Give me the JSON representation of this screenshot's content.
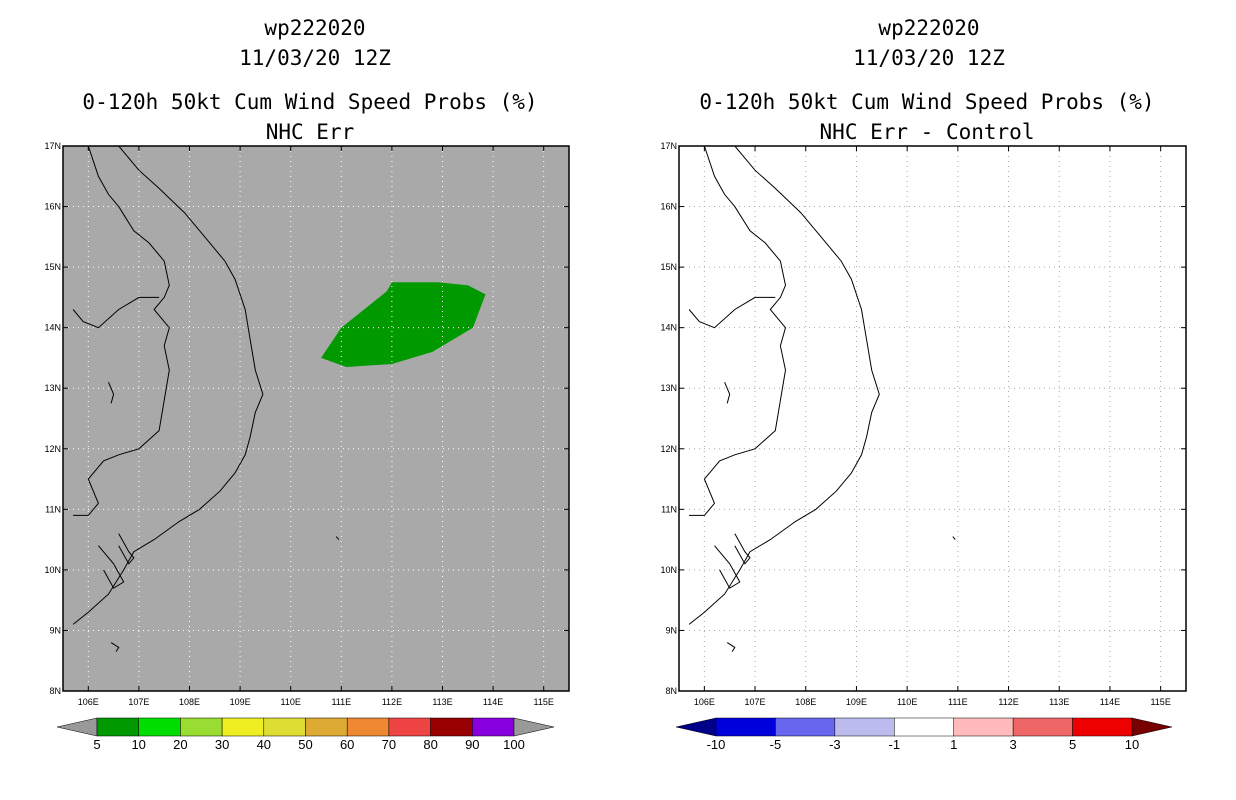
{
  "panels": [
    {
      "title_lines": [
        "wp222020",
        "11/03/20 12Z",
        "0-120h 50kt Cum Wind Speed Probs (%)",
        "NHC Err"
      ],
      "background_color": "#a9a9a9",
      "grid_color": "#ffffff",
      "colorbar": {
        "colors": [
          "#009900",
          "#00dd00",
          "#99dd33",
          "#eeee22",
          "#dddd33",
          "#ddaa33",
          "#ee8833",
          "#ee4444",
          "#990000",
          "#8800dd"
        ],
        "labels": [
          "5",
          "10",
          "20",
          "30",
          "40",
          "50",
          "60",
          "70",
          "80",
          "90",
          "100"
        ],
        "low_color": "#999999",
        "high_color": "#999999"
      },
      "features": [
        {
          "name": "probability-contour-5-10pct",
          "color": "#009900",
          "polygon": [
            [
              110.6,
              13.5
            ],
            [
              111.0,
              14.0
            ],
            [
              111.9,
              14.6
            ],
            [
              112.0,
              14.75
            ],
            [
              112.9,
              14.75
            ],
            [
              113.5,
              14.7
            ],
            [
              113.85,
              14.55
            ],
            [
              113.6,
              14.0
            ],
            [
              112.8,
              13.6
            ],
            [
              112.0,
              13.4
            ],
            [
              111.1,
              13.35
            ]
          ]
        }
      ]
    },
    {
      "title_lines": [
        "wp222020",
        "11/03/20 12Z",
        "0-120h 50kt Cum Wind Speed Probs (%)",
        "NHC Err - Control"
      ],
      "background_color": "#ffffff",
      "grid_color": "#aaaaaa",
      "colorbar": {
        "colors": [
          "#0000dd",
          "#6666ee",
          "#bbbbee",
          "#ffffff",
          "#ffbbbb",
          "#ee6666",
          "#ee0000"
        ],
        "labels": [
          "-10",
          "-5",
          "-3",
          "-1",
          "1",
          "3",
          "5",
          "10"
        ],
        "low_color": "#000088",
        "high_color": "#770000"
      },
      "features": []
    }
  ],
  "map": {
    "lon_ticks": [
      "106E",
      "107E",
      "108E",
      "109E",
      "110E",
      "111E",
      "112E",
      "113E",
      "114E",
      "115E"
    ],
    "lat_ticks": [
      "8N",
      "9N",
      "10N",
      "11N",
      "12N",
      "13N",
      "14N",
      "15N",
      "16N",
      "17N"
    ],
    "coastline": [
      [
        106.6,
        17.0
      ],
      [
        107.0,
        16.6
      ],
      [
        107.4,
        16.3
      ],
      [
        107.9,
        15.9
      ],
      [
        108.3,
        15.5
      ],
      [
        108.7,
        15.1
      ],
      [
        108.9,
        14.8
      ],
      [
        109.1,
        14.3
      ],
      [
        109.2,
        13.8
      ],
      [
        109.3,
        13.3
      ],
      [
        109.45,
        12.9
      ],
      [
        109.3,
        12.6
      ],
      [
        109.2,
        12.2
      ],
      [
        109.1,
        11.9
      ],
      [
        108.9,
        11.6
      ],
      [
        108.6,
        11.3
      ],
      [
        108.2,
        11.0
      ],
      [
        107.8,
        10.8
      ],
      [
        107.3,
        10.5
      ],
      [
        106.9,
        10.3
      ],
      [
        106.7,
        10.0
      ],
      [
        106.4,
        9.6
      ],
      [
        106.0,
        9.3
      ],
      [
        105.7,
        9.1
      ]
    ],
    "border": [
      [
        106.0,
        17.0
      ],
      [
        106.2,
        16.5
      ],
      [
        106.4,
        16.2
      ],
      [
        106.6,
        16.0
      ],
      [
        106.9,
        15.6
      ],
      [
        107.2,
        15.4
      ],
      [
        107.5,
        15.1
      ],
      [
        107.6,
        14.7
      ],
      [
        107.5,
        14.5
      ],
      [
        107.3,
        14.3
      ],
      [
        107.6,
        14.0
      ],
      [
        107.5,
        13.7
      ],
      [
        107.6,
        13.3
      ],
      [
        107.5,
        12.8
      ],
      [
        107.4,
        12.3
      ],
      [
        107.0,
        12.0
      ],
      [
        106.6,
        11.9
      ],
      [
        106.3,
        11.8
      ],
      [
        106.0,
        11.5
      ],
      [
        106.2,
        11.1
      ],
      [
        106.0,
        10.9
      ],
      [
        105.7,
        10.9
      ]
    ],
    "thai_border": [
      [
        105.7,
        14.3
      ],
      [
        105.9,
        14.1
      ],
      [
        106.2,
        14.0
      ],
      [
        106.6,
        14.3
      ],
      [
        107.0,
        14.5
      ],
      [
        107.4,
        14.5
      ]
    ],
    "islands": [
      [
        [
          106.2,
          10.4
        ],
        [
          106.5,
          10.1
        ],
        [
          106.7,
          9.8
        ],
        [
          106.5,
          9.7
        ],
        [
          106.3,
          10.0
        ]
      ],
      [
        [
          106.6,
          10.6
        ],
        [
          106.8,
          10.3
        ],
        [
          106.9,
          10.2
        ],
        [
          106.8,
          10.1
        ],
        [
          106.6,
          10.4
        ]
      ],
      [
        [
          106.45,
          8.8
        ],
        [
          106.6,
          8.72
        ],
        [
          106.55,
          8.65
        ]
      ],
      [
        [
          110.9,
          10.55
        ],
        [
          110.95,
          10.5
        ]
      ],
      [
        [
          106.4,
          13.1
        ],
        [
          106.5,
          12.9
        ],
        [
          106.45,
          12.75
        ]
      ]
    ]
  }
}
